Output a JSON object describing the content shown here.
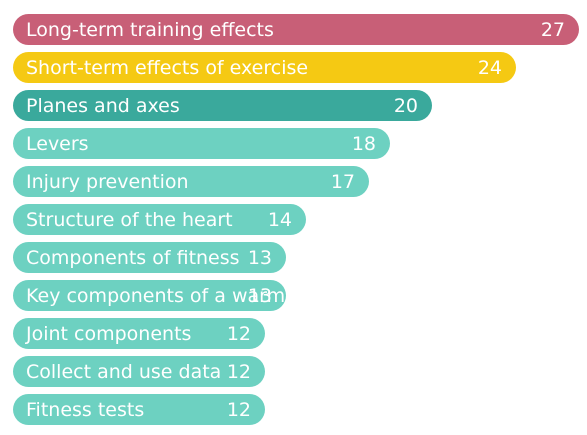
{
  "chart_data": {
    "type": "bar",
    "orientation": "horizontal",
    "categories": [
      "Long-term training effects",
      "Short-term effects of exercise",
      "Planes and axes",
      "Levers",
      "Injury prevention",
      "Structure of the heart",
      "Components of fitness",
      "Key components of a warm-up",
      "Joint components",
      "Collect and use data",
      "Fitness tests"
    ],
    "values": [
      27,
      24,
      20,
      18,
      17,
      14,
      13,
      13,
      12,
      12,
      12
    ],
    "colors": [
      "#c85f77",
      "#f5c913",
      "#3aa99c",
      "#6dd1c1",
      "#6dd1c1",
      "#6dd1c1",
      "#6dd1c1",
      "#6dd1c1",
      "#6dd1c1",
      "#6dd1c1",
      "#6dd1c1"
    ],
    "title": "",
    "xlabel": "",
    "ylabel": "",
    "xlim": [
      0,
      27
    ],
    "grid": false,
    "legend": "none"
  }
}
